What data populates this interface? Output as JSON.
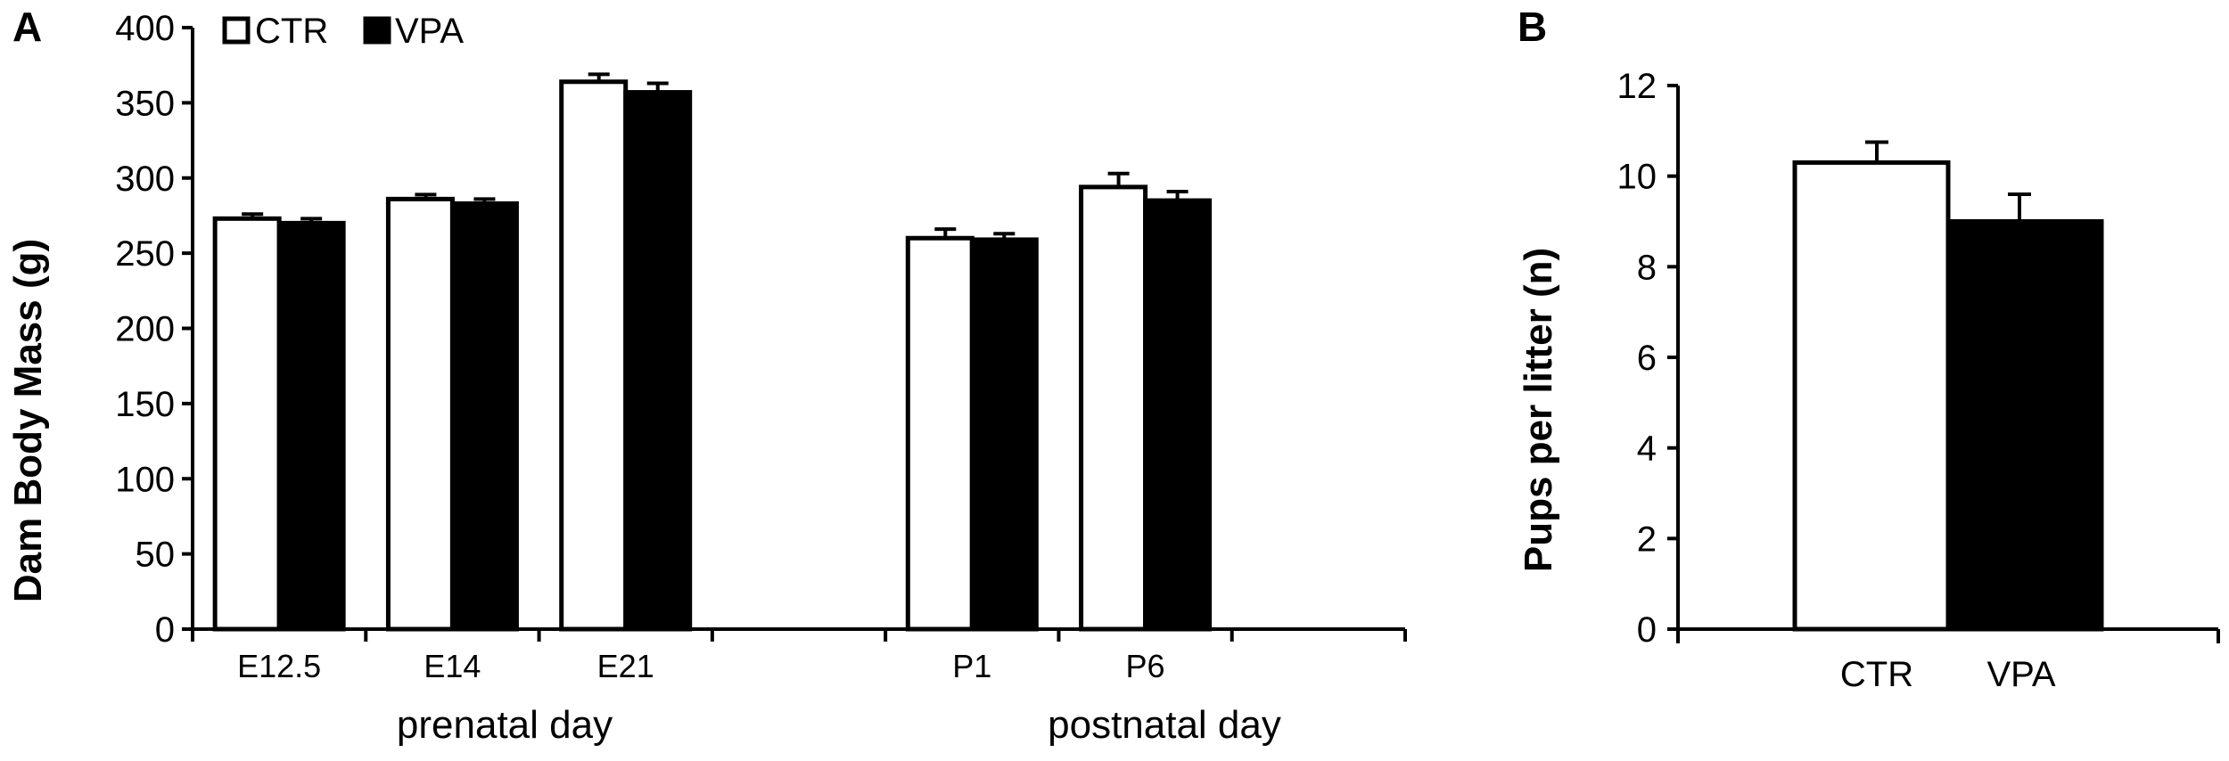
{
  "chart_data": [
    {
      "type": "bar",
      "panel": "A",
      "ylabel": "Dam Body Mass (g)",
      "ylim": [
        0,
        400
      ],
      "yticks": [
        "0",
        "50",
        "100",
        "150",
        "200",
        "250",
        "300",
        "350",
        "400"
      ],
      "categories": [
        "E12.5",
        "E14",
        "E21",
        "P1",
        "P6"
      ],
      "groups": [
        "prenatal day",
        "postnatal day"
      ],
      "legend_placement": "top-left",
      "grid": false,
      "series": [
        {
          "name": "CTR",
          "color": "#ffffff",
          "values": [
            273,
            286,
            364,
            260,
            294
          ],
          "errors": [
            3,
            3,
            5,
            6,
            9
          ]
        },
        {
          "name": "VPA",
          "color": "#000000",
          "values": [
            270,
            283,
            357,
            259,
            285
          ],
          "errors": [
            3,
            3,
            6,
            4,
            6
          ]
        }
      ]
    },
    {
      "type": "bar",
      "panel": "B",
      "ylabel": "Pups per litter (n)",
      "ylim": [
        0,
        12
      ],
      "yticks": [
        "0",
        "2",
        "4",
        "6",
        "8",
        "10",
        "12"
      ],
      "categories": [
        "CTR",
        "VPA"
      ],
      "grid": false,
      "series": [
        {
          "values": [
            10.3,
            9.0
          ],
          "errors": [
            0.45,
            0.6
          ],
          "colors": [
            "#ffffff",
            "#000000"
          ]
        }
      ]
    }
  ]
}
